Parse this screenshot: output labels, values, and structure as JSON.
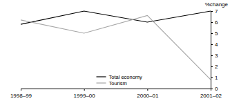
{
  "chart_data": {
    "type": "line",
    "y_label": "%change",
    "categories": [
      "1998–99",
      "1999–00",
      "2000–01",
      "2001–02"
    ],
    "series": [
      {
        "name": "Total economy",
        "color": "#000000",
        "values": [
          5.8,
          7.0,
          6.0,
          7.0
        ]
      },
      {
        "name": "Tourism",
        "color": "#a6a6a6",
        "values": [
          6.2,
          5.0,
          6.6,
          0.8
        ]
      }
    ],
    "ylim": [
      0,
      7
    ],
    "yticks": [
      0,
      1,
      2,
      3,
      4,
      5,
      6,
      7
    ],
    "grid": false,
    "legend": "lower center"
  }
}
